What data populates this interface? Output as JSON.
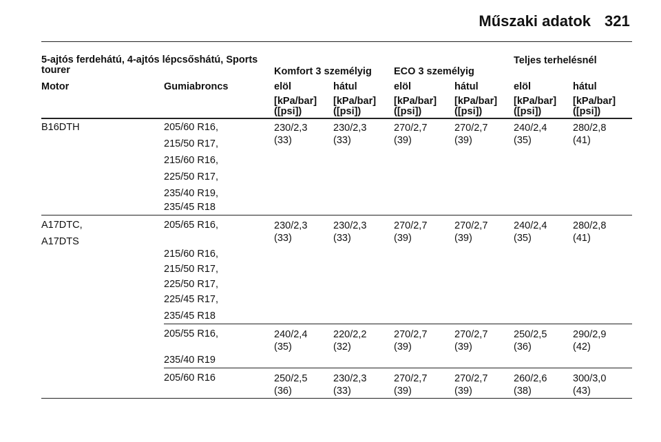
{
  "header": {
    "title": "Műszaki adatok",
    "page": "321"
  },
  "table": {
    "group_headers": {
      "vehicle": "5-ajtós ferdehátú, 4-ajtós lépcsőshátú, Sports tourer",
      "komfort": "Komfort 3 személyig",
      "eco": "ECO 3 személyig",
      "full": "Teljes terhelésnél"
    },
    "columns": [
      "Motor",
      "Gumiabroncs",
      "elöl",
      "hátul",
      "elöl",
      "hátul",
      "elöl",
      "hátul"
    ],
    "units": [
      "[kPa/bar]\n([psi])",
      "[kPa/bar]\n([psi])",
      "[kPa/bar]\n([psi])",
      "[kPa/bar]\n([psi])",
      "[kPa/bar]\n([psi])",
      "[kPa/bar]\n([psi])"
    ],
    "rows": [
      {
        "motor": [
          "B16DTH"
        ],
        "tires": [
          "205/60 R16,",
          "215/50 R17,",
          "215/60 R16,",
          "225/50 R17,",
          "235/40 R19,",
          "235/45 R18"
        ],
        "values": [
          "230/2,3\n(33)",
          "230/2,3\n(33)",
          "270/2,7\n(39)",
          "270/2,7\n(39)",
          "240/2,4\n(35)",
          "280/2,8\n(41)"
        ]
      },
      {
        "motor": [
          "A17DTC,",
          "A17DTS"
        ],
        "tires": [
          "205/65 R16,",
          "215/60 R16,",
          "215/50 R17,",
          "225/50 R17,",
          "225/45 R17,",
          "235/45 R18"
        ],
        "values": [
          "230/2,3\n(33)",
          "230/2,3\n(33)",
          "270/2,7\n(39)",
          "270/2,7\n(39)",
          "240/2,4\n(35)",
          "280/2,8\n(41)"
        ]
      },
      {
        "motor": [],
        "tires": [
          "205/55 R16,",
          "235/40 R19"
        ],
        "values": [
          "240/2,4\n(35)",
          "220/2,2\n(32)",
          "270/2,7\n(39)",
          "270/2,7\n(39)",
          "250/2,5\n(36)",
          "290/2,9\n(42)"
        ]
      },
      {
        "motor": [],
        "tires": [
          "205/60 R16"
        ],
        "values": [
          "250/2,5\n(36)",
          "230/2,3\n(33)",
          "270/2,7\n(39)",
          "270/2,7\n(39)",
          "260/2,6\n(38)",
          "300/3,0\n(43)"
        ]
      }
    ]
  }
}
